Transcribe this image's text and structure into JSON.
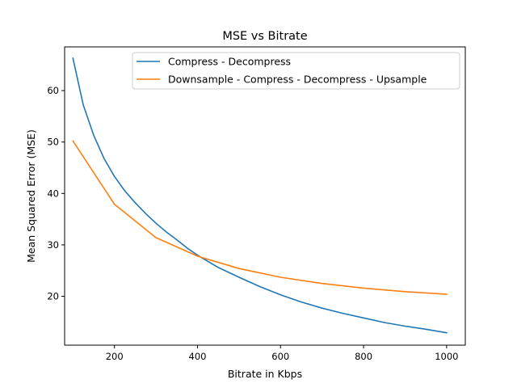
{
  "chart_data": {
    "type": "line",
    "title": "MSE vs Bitrate",
    "xlabel": "Bitrate in Kbps",
    "ylabel": "Mean Squared Error (MSE)",
    "xlim": [
      80,
      1045
    ],
    "ylim": [
      10.5,
      68.5
    ],
    "xticks": [
      200,
      400,
      600,
      800,
      1000
    ],
    "yticks": [
      20,
      30,
      40,
      50,
      60
    ],
    "grid": false,
    "legend_position": "top-right",
    "series": [
      {
        "name": "Compress - Decompress",
        "color": "#1f77b4",
        "x": [
          100,
          125,
          150,
          175,
          200,
          225,
          250,
          275,
          300,
          325,
          350,
          375,
          400,
          450,
          500,
          550,
          600,
          650,
          700,
          750,
          800,
          850,
          900,
          950,
          1000
        ],
        "y": [
          66.3,
          57.2,
          51.3,
          46.8,
          43.3,
          40.5,
          38.2,
          36.1,
          34.2,
          32.5,
          31.0,
          29.4,
          28.0,
          25.6,
          23.7,
          21.9,
          20.3,
          18.9,
          17.7,
          16.7,
          15.8,
          14.9,
          14.2,
          13.6,
          12.9
        ]
      },
      {
        "name": "Downsample - Compress - Decompress - Upsample",
        "color": "#ff7f0e",
        "x": [
          100,
          200,
          300,
          400,
          500,
          600,
          700,
          800,
          900,
          1000
        ],
        "y": [
          50.2,
          37.9,
          31.4,
          27.8,
          25.4,
          23.7,
          22.5,
          21.6,
          20.9,
          20.4
        ]
      }
    ]
  }
}
